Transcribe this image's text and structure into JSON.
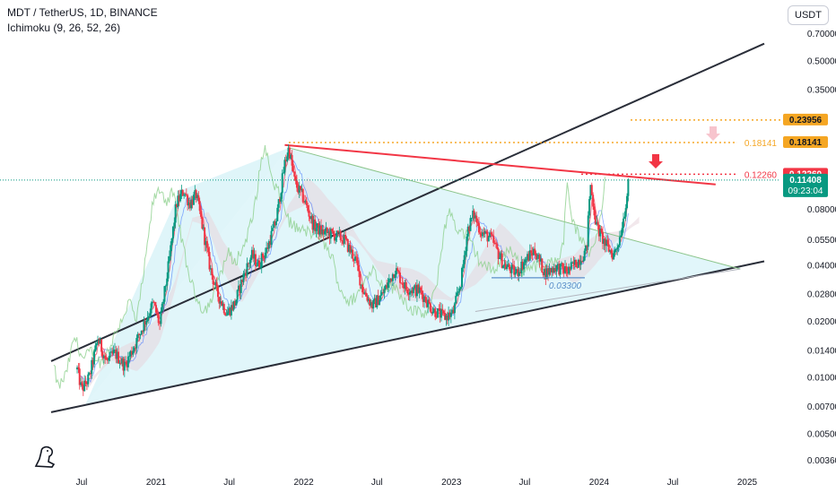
{
  "header": {
    "title": "MDT / TetherUS, 1D, BINANCE",
    "indicator": "Ichimoku (9, 26, 52, 26)"
  },
  "currency_button": "USDT",
  "chart_data": {
    "type": "candlestick",
    "y_scale": "log",
    "y_ticks": [
      "0.70000",
      "0.50000",
      "0.35000",
      "0.23956",
      "0.18141",
      "0.12260",
      "0.11408",
      "0.08000",
      "0.05500",
      "0.04000",
      "0.02800",
      "0.02000",
      "0.01400",
      "0.01000",
      "0.00700",
      "0.00500",
      "0.00360"
    ],
    "y_tick_values": [
      0.7,
      0.5,
      0.35,
      0.08,
      0.055,
      0.04,
      0.028,
      0.02,
      0.014,
      0.01,
      0.007,
      0.005,
      0.0036
    ],
    "x_ticks": [
      "Jul",
      "2021",
      "Jul",
      "2022",
      "Jul",
      "2023",
      "Jul",
      "2024",
      "Jul",
      "2025"
    ],
    "x_tick_dates": [
      "2020-07-01",
      "2021-01-01",
      "2021-07-01",
      "2022-01-01",
      "2022-07-01",
      "2023-01-01",
      "2023-07-01",
      "2024-01-01",
      "2024-07-01",
      "2025-01-01"
    ],
    "price_tags": [
      {
        "label": "0.23956",
        "value": 0.23956,
        "color": "#f5a623",
        "text_color": "#131722"
      },
      {
        "label": "0.18141",
        "value": 0.18141,
        "color": "#f5a623",
        "text_color": "#131722"
      },
      {
        "label": "0.12260",
        "value": 0.1226,
        "color": "#f23645",
        "text_color": "#ffffff"
      },
      {
        "label": "0.11408",
        "value": 0.11408,
        "color": "#089981",
        "text_color": "#ffffff",
        "sub": "09:23:04"
      }
    ],
    "annotations": [
      {
        "text": "0.18141",
        "value": 0.18141,
        "color": "#f5a623"
      },
      {
        "text": "0.12260",
        "value": 0.1226,
        "color": "#f23645"
      },
      {
        "text": "0.03300",
        "value": 0.033,
        "color": "#5b8ec9"
      }
    ],
    "trendlines": [
      {
        "name": "upper-channel",
        "from": [
          "2020-06-15",
          0.0139
        ],
        "to": [
          "2025-01-01",
          0.56
        ],
        "color": "#2a2e39"
      },
      {
        "name": "lower-channel",
        "from": [
          "2020-06-15",
          0.0069
        ],
        "to": [
          "2025-01-01",
          0.04
        ],
        "color": "#2a2e39"
      },
      {
        "name": "red-resistance",
        "from": [
          "2021-11-15",
          0.176
        ],
        "to": [
          "2024-10-15",
          0.108
        ],
        "color": "#f23645"
      },
      {
        "name": "green-descending",
        "from": [
          "2021-11-25",
          0.17
        ],
        "to": [
          "2024-12-15",
          0.038
        ],
        "color": "#8bc48a"
      }
    ],
    "price_path": [
      [
        "2020-06-20",
        0.011
      ],
      [
        "2020-07-01",
        0.0085
      ],
      [
        "2020-07-20",
        0.01
      ],
      [
        "2020-08-10",
        0.016
      ],
      [
        "2020-09-01",
        0.012
      ],
      [
        "2020-09-20",
        0.0135
      ],
      [
        "2020-10-15",
        0.0115
      ],
      [
        "2020-11-10",
        0.015
      ],
      [
        "2020-12-05",
        0.02
      ],
      [
        "2020-12-25",
        0.025
      ],
      [
        "2021-01-10",
        0.019
      ],
      [
        "2021-02-01",
        0.04
      ],
      [
        "2021-02-20",
        0.085
      ],
      [
        "2021-03-10",
        0.1
      ],
      [
        "2021-03-25",
        0.085
      ],
      [
        "2021-04-10",
        0.095
      ],
      [
        "2021-04-25",
        0.065
      ],
      [
        "2021-05-15",
        0.038
      ],
      [
        "2021-06-01",
        0.028
      ],
      [
        "2021-06-25",
        0.022
      ],
      [
        "2021-07-15",
        0.025
      ],
      [
        "2021-08-05",
        0.035
      ],
      [
        "2021-08-25",
        0.045
      ],
      [
        "2021-09-10",
        0.04
      ],
      [
        "2021-10-01",
        0.048
      ],
      [
        "2021-10-25",
        0.07
      ],
      [
        "2021-11-15",
        0.14
      ],
      [
        "2021-11-25",
        0.17
      ],
      [
        "2021-12-10",
        0.11
      ],
      [
        "2022-01-01",
        0.09
      ],
      [
        "2022-01-25",
        0.065
      ],
      [
        "2022-02-15",
        0.06
      ],
      [
        "2022-03-15",
        0.058
      ],
      [
        "2022-04-10",
        0.055
      ],
      [
        "2022-05-10",
        0.042
      ],
      [
        "2022-05-25",
        0.03
      ],
      [
        "2022-06-20",
        0.024
      ],
      [
        "2022-07-15",
        0.028
      ],
      [
        "2022-08-15",
        0.038
      ],
      [
        "2022-09-10",
        0.03
      ],
      [
        "2022-10-15",
        0.029
      ],
      [
        "2022-11-15",
        0.023
      ],
      [
        "2022-12-15",
        0.021
      ],
      [
        "2023-01-05",
        0.022
      ],
      [
        "2023-01-25",
        0.033
      ],
      [
        "2023-02-10",
        0.062
      ],
      [
        "2023-02-25",
        0.075
      ],
      [
        "2023-03-15",
        0.06
      ],
      [
        "2023-04-10",
        0.055
      ],
      [
        "2023-05-10",
        0.04
      ],
      [
        "2023-06-10",
        0.036
      ],
      [
        "2023-07-01",
        0.042
      ],
      [
        "2023-07-25",
        0.048
      ],
      [
        "2023-08-20",
        0.036
      ],
      [
        "2023-09-15",
        0.039
      ],
      [
        "2023-10-15",
        0.037
      ],
      [
        "2023-11-10",
        0.042
      ],
      [
        "2023-12-01",
        0.048
      ],
      [
        "2023-12-10",
        0.11
      ],
      [
        "2023-12-25",
        0.065
      ],
      [
        "2024-01-15",
        0.052
      ],
      [
        "2024-02-05",
        0.045
      ],
      [
        "2024-02-20",
        0.055
      ],
      [
        "2024-03-05",
        0.08
      ],
      [
        "2024-03-15",
        0.114
      ]
    ],
    "cloud": [
      [
        "2020-07-15",
        0.009
      ],
      [
        "2020-09-15",
        0.013
      ],
      [
        "2020-11-15",
        0.013
      ],
      [
        "2021-01-10",
        0.018
      ],
      [
        "2021-02-15",
        0.03
      ],
      [
        "2021-04-01",
        0.07
      ],
      [
        "2021-05-10",
        0.07
      ],
      [
        "2021-06-15",
        0.045
      ],
      [
        "2021-08-01",
        0.03
      ],
      [
        "2021-10-01",
        0.045
      ],
      [
        "2021-11-25",
        0.08
      ],
      [
        "2022-01-10",
        0.1
      ],
      [
        "2022-03-01",
        0.075
      ],
      [
        "2022-05-01",
        0.06
      ],
      [
        "2022-07-01",
        0.04
      ],
      [
        "2022-09-01",
        0.032
      ],
      [
        "2022-11-01",
        0.03
      ],
      [
        "2023-01-01",
        0.026
      ],
      [
        "2023-03-01",
        0.035
      ],
      [
        "2023-05-01",
        0.055
      ],
      [
        "2023-07-01",
        0.045
      ],
      [
        "2023-09-01",
        0.04
      ],
      [
        "2023-11-01",
        0.038
      ],
      [
        "2024-01-01",
        0.05
      ],
      [
        "2024-03-01",
        0.06
      ],
      [
        "2024-04-10",
        0.07
      ]
    ],
    "colors": {
      "bull": "#089981",
      "bear": "#f23645",
      "orange": "#f5a623",
      "red": "#f23645",
      "pink": "#f7c4cd",
      "triangle": "#c9eff5",
      "green_line": "#8bc48a",
      "blue": "#5b8ec9",
      "channel": "#2a2e39"
    }
  }
}
